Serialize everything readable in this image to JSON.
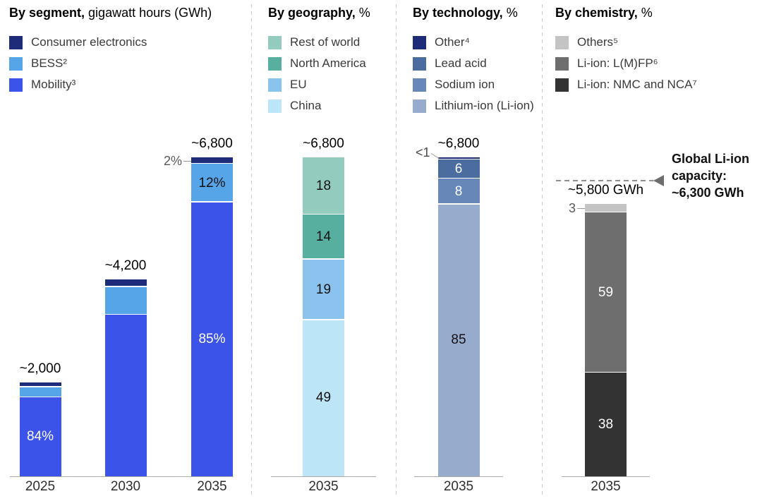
{
  "colors": {
    "navy": "#1e2b78",
    "bess_blue": "#57a5e9",
    "mobility_blue": "#3b53e8",
    "rest_of_world_teal": "#93cbbe",
    "north_america_teal": "#57afa0",
    "eu_blue": "#8ac3ee",
    "china_blue": "#bce5f8",
    "lead_acid_blue": "#4a6c9e",
    "sodium_ion_blue": "#6787b8",
    "li_ion_blue": "#97abcc",
    "others_gray": "#c4c4c4",
    "lmfp_gray": "#6e6e6e",
    "nmc_gray": "#333333"
  },
  "chart_data": [
    {
      "type": "bar",
      "stacked": true,
      "title_bold": "By segment,",
      "title_rest": " gigawatt hours (GWh)",
      "unit": "GWh",
      "legend": [
        {
          "label": "Consumer electronics",
          "color": "#1e2b78"
        },
        {
          "label": "BESS²",
          "color": "#57a5e9"
        },
        {
          "label": "Mobility³",
          "color": "#3b53e8"
        }
      ],
      "categories": [
        "2025",
        "2030",
        "2035"
      ],
      "bars": [
        {
          "category": "2025",
          "total_gwh": 2000,
          "total_label": "~2,000",
          "segments": [
            {
              "name": "Consumer electronics",
              "pct": 5,
              "label": "",
              "color": "#1e2b78",
              "label_color": "#ffffff"
            },
            {
              "name": "BESS",
              "pct": 11,
              "label": "",
              "color": "#57a5e9",
              "label_color": "#111111"
            },
            {
              "name": "Mobility",
              "pct": 84,
              "label": "84%",
              "color": "#3b53e8",
              "label_color": "#ffffff"
            }
          ]
        },
        {
          "category": "2030",
          "total_gwh": 4200,
          "total_label": "~4,200",
          "segments": [
            {
              "name": "Consumer electronics",
              "pct": 4,
              "label": "",
              "color": "#1e2b78",
              "label_color": "#ffffff"
            },
            {
              "name": "BESS",
              "pct": 14,
              "label": "",
              "color": "#57a5e9",
              "label_color": "#111111"
            },
            {
              "name": "Mobility",
              "pct": 82,
              "label": "",
              "color": "#3b53e8",
              "label_color": "#ffffff"
            }
          ]
        },
        {
          "category": "2035",
          "total_gwh": 6800,
          "total_label": "~6,800",
          "segments": [
            {
              "name": "Consumer electronics",
              "pct": 2,
              "label": "",
              "color": "#1e2b78",
              "label_color": "#ffffff"
            },
            {
              "name": "BESS",
              "pct": 12,
              "label": "12%",
              "color": "#57a5e9",
              "label_color": "#111111"
            },
            {
              "name": "Mobility",
              "pct": 85,
              "label": "85%",
              "color": "#3b53e8",
              "label_color": "#ffffff"
            }
          ]
        }
      ],
      "callouts": [
        {
          "text": "2%",
          "bar": 2,
          "segment": 0,
          "style": "left"
        }
      ]
    },
    {
      "type": "bar",
      "stacked": true,
      "title_bold": "By geography,",
      "title_rest": " %",
      "unit": "%",
      "legend": [
        {
          "label": "Rest of world",
          "color": "#93cbbe"
        },
        {
          "label": "North America",
          "color": "#57afa0"
        },
        {
          "label": "EU",
          "color": "#8ac3ee"
        },
        {
          "label": "China",
          "color": "#bce5f8"
        }
      ],
      "categories": [
        "2035"
      ],
      "bars": [
        {
          "category": "2035",
          "total_gwh": 6800,
          "total_label": "~6,800",
          "segments": [
            {
              "name": "Rest of world",
              "pct": 18,
              "label": "18",
              "color": "#93cbbe",
              "label_color": "#111111"
            },
            {
              "name": "North America",
              "pct": 14,
              "label": "14",
              "color": "#57afa0",
              "label_color": "#111111"
            },
            {
              "name": "EU",
              "pct": 19,
              "label": "19",
              "color": "#8ac3ee",
              "label_color": "#111111"
            },
            {
              "name": "China",
              "pct": 49,
              "label": "49",
              "color": "#bce5f8",
              "label_color": "#111111"
            }
          ]
        }
      ],
      "callouts": []
    },
    {
      "type": "bar",
      "stacked": true,
      "title_bold": "By technology,",
      "title_rest": " %",
      "unit": "%",
      "legend": [
        {
          "label": "Other⁴",
          "color": "#1e2b78"
        },
        {
          "label": "Lead acid",
          "color": "#4a6c9e"
        },
        {
          "label": "Sodium ion",
          "color": "#6787b8"
        },
        {
          "label": "Lithium-ion (Li-ion)",
          "color": "#97abcc"
        }
      ],
      "categories": [
        "2035"
      ],
      "bars": [
        {
          "category": "2035",
          "total_gwh": 6800,
          "total_label": "~6,800",
          "segments": [
            {
              "name": "Other",
              "pct": 0.7,
              "label": "",
              "color": "#1e2b78",
              "label_color": "#ffffff"
            },
            {
              "name": "Lead acid",
              "pct": 6,
              "label": "6",
              "color": "#4a6c9e",
              "label_color": "#ffffff"
            },
            {
              "name": "Sodium ion",
              "pct": 8,
              "label": "8",
              "color": "#6787b8",
              "label_color": "#ffffff"
            },
            {
              "name": "Lithium-ion (Li-ion)",
              "pct": 85,
              "label": "85",
              "color": "#97abcc",
              "label_color": "#111111"
            }
          ]
        }
      ],
      "callouts": [
        {
          "text": "<1",
          "bar": 0,
          "segment": 0,
          "style": "diag"
        }
      ]
    },
    {
      "type": "bar",
      "stacked": true,
      "title_bold": "By chemistry,",
      "title_rest": " %",
      "unit": "%",
      "legend": [
        {
          "label": "Others⁵",
          "color": "#c4c4c4"
        },
        {
          "label": "Li-ion: L(M)FP⁶",
          "color": "#6e6e6e"
        },
        {
          "label": "Li-ion: NMC and NCA⁷",
          "color": "#333333"
        }
      ],
      "categories": [
        "2035"
      ],
      "bars": [
        {
          "category": "2035",
          "total_gwh": 5800,
          "total_label": "~5,800 GWh",
          "segments": [
            {
              "name": "Others",
              "pct": 3,
              "label": "",
              "color": "#c4c4c4",
              "label_color": "#111111"
            },
            {
              "name": "Li-ion: L(M)FP",
              "pct": 59,
              "label": "59",
              "color": "#6e6e6e",
              "label_color": "#ffffff"
            },
            {
              "name": "Li-ion: NMC and NCA",
              "pct": 38,
              "label": "38",
              "color": "#333333",
              "label_color": "#ffffff"
            }
          ]
        }
      ],
      "callouts": [
        {
          "text": "3",
          "bar": 0,
          "segment": 0,
          "style": "left"
        }
      ],
      "reference_line": {
        "gwh": 6300,
        "label": "Global Li-ion\ncapacity:\n~6,300 GWh"
      }
    }
  ]
}
